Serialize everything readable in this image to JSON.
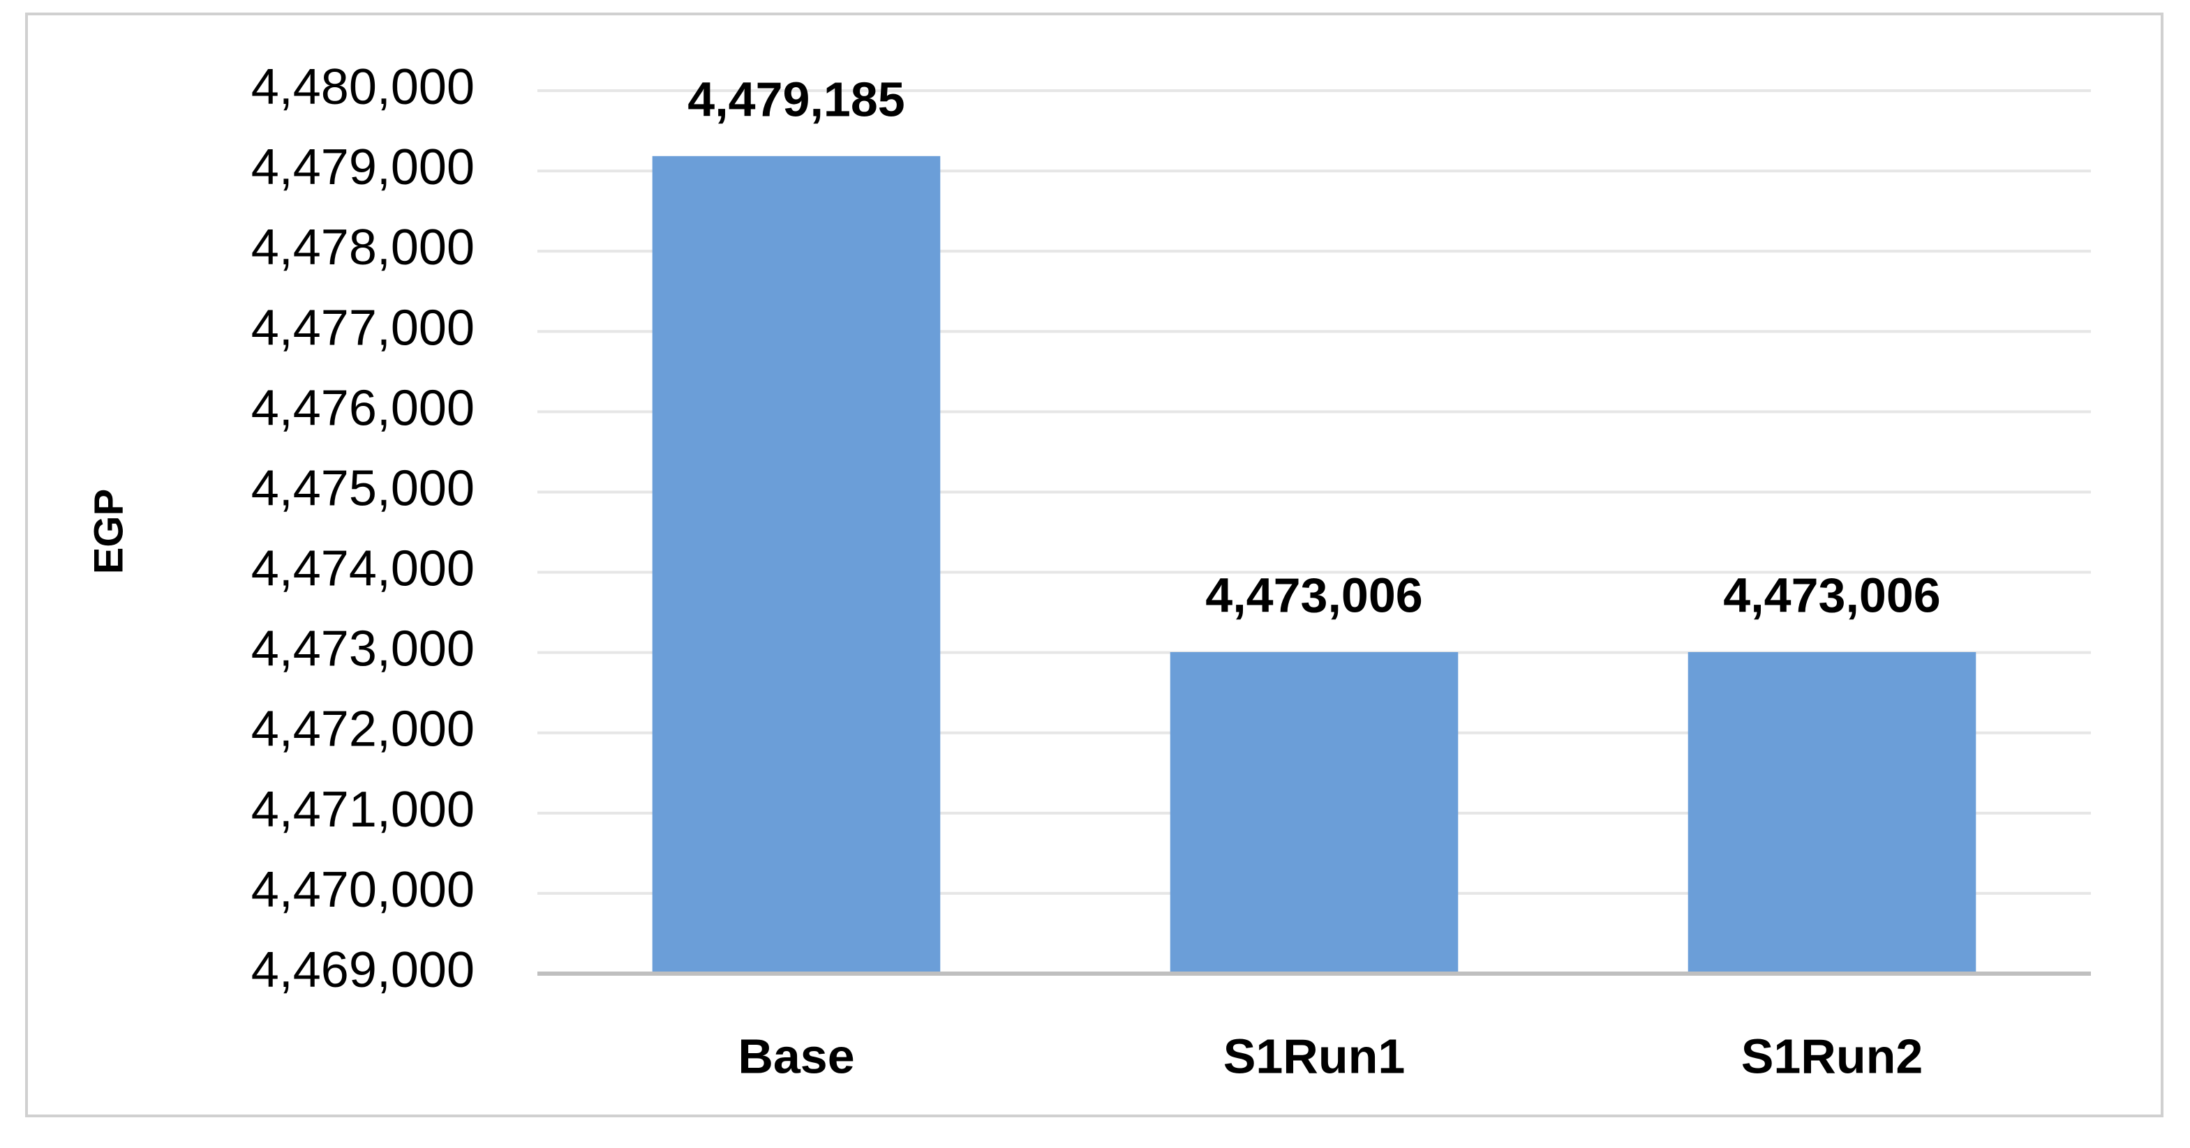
{
  "chart_data": {
    "type": "bar",
    "y_label": "EGP",
    "categories": [
      "Base",
      "S1Run1",
      "S1Run2"
    ],
    "values": [
      4479185,
      4473006,
      4473006
    ],
    "value_labels": [
      "4,479,185",
      "4,473,006",
      "4,473,006"
    ],
    "color": "#6b9ed8",
    "ylim": [
      4469000,
      4480000
    ],
    "yticks": [
      {
        "value": 4469000,
        "label": "4,469,000"
      },
      {
        "value": 4470000,
        "label": "4,470,000"
      },
      {
        "value": 4471000,
        "label": "4,471,000"
      },
      {
        "value": 4472000,
        "label": "4,472,000"
      },
      {
        "value": 4473000,
        "label": "4,473,000"
      },
      {
        "value": 4474000,
        "label": "4,474,000"
      },
      {
        "value": 4475000,
        "label": "4,475,000"
      },
      {
        "value": 4476000,
        "label": "4,476,000"
      },
      {
        "value": 4477000,
        "label": "4,477,000"
      },
      {
        "value": 4478000,
        "label": "4,478,000"
      },
      {
        "value": 4479000,
        "label": "4,479,000"
      },
      {
        "value": 4480000,
        "label": "4,480,000"
      }
    ],
    "grid": true
  }
}
